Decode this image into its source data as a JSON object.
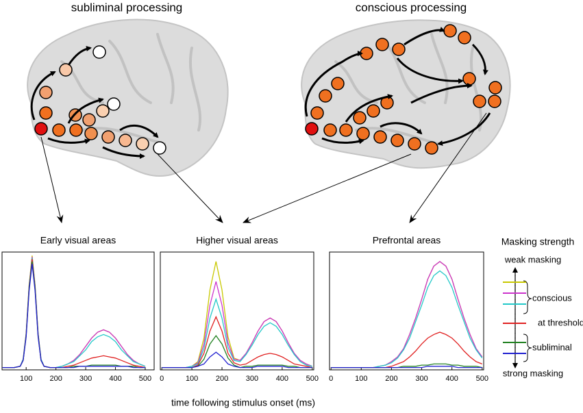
{
  "brains": [
    "subliminal processing",
    "conscious processing"
  ],
  "xlabel": "time following stimulus onset (ms)",
  "legend": {
    "title": "Masking strength",
    "top": "weak masking",
    "bottom": "strong masking",
    "groups": [
      "conscious",
      "at threshold",
      "subliminal"
    ]
  },
  "chart_data": [
    {
      "type": "line",
      "title": "Early visual areas",
      "xlim": [
        19,
        530
      ],
      "ylim": [
        0,
        1
      ],
      "xticks": [
        100,
        200,
        300,
        400,
        500
      ],
      "x": [
        20,
        40,
        60,
        80,
        90,
        100,
        110,
        120,
        130,
        140,
        150,
        160,
        180,
        200,
        220,
        240,
        260,
        280,
        300,
        320,
        340,
        360,
        380,
        400,
        420,
        440,
        460,
        480,
        500
      ],
      "series": [
        {
          "color": "#c8c800",
          "values": [
            0.02,
            0.02,
            0.02,
            0.03,
            0.09,
            0.31,
            0.72,
            0.97,
            0.72,
            0.31,
            0.09,
            0.03,
            0.02,
            0.02,
            0.03,
            0.05,
            0.08,
            0.13,
            0.2,
            0.27,
            0.32,
            0.34,
            0.32,
            0.27,
            0.2,
            0.13,
            0.08,
            0.05,
            0.03
          ]
        },
        {
          "color": "#cc33cc",
          "values": [
            0.02,
            0.02,
            0.02,
            0.03,
            0.09,
            0.31,
            0.71,
            0.96,
            0.71,
            0.31,
            0.09,
            0.03,
            0.02,
            0.02,
            0.03,
            0.05,
            0.08,
            0.13,
            0.2,
            0.27,
            0.32,
            0.34,
            0.32,
            0.27,
            0.2,
            0.13,
            0.08,
            0.05,
            0.03
          ]
        },
        {
          "color": "#22c8c8",
          "values": [
            0.02,
            0.02,
            0.02,
            0.03,
            0.09,
            0.31,
            0.71,
            0.95,
            0.71,
            0.31,
            0.09,
            0.03,
            0.02,
            0.02,
            0.03,
            0.05,
            0.07,
            0.12,
            0.17,
            0.24,
            0.28,
            0.3,
            0.28,
            0.24,
            0.17,
            0.12,
            0.07,
            0.05,
            0.03
          ]
        },
        {
          "color": "#e02020",
          "values": [
            0.02,
            0.02,
            0.02,
            0.03,
            0.08,
            0.3,
            0.7,
            0.94,
            0.7,
            0.3,
            0.08,
            0.03,
            0.02,
            0.02,
            0.02,
            0.03,
            0.04,
            0.06,
            0.08,
            0.1,
            0.11,
            0.12,
            0.11,
            0.1,
            0.08,
            0.06,
            0.04,
            0.03,
            0.02
          ]
        },
        {
          "color": "#208020",
          "values": [
            0.02,
            0.02,
            0.02,
            0.03,
            0.08,
            0.29,
            0.69,
            0.92,
            0.69,
            0.29,
            0.08,
            0.03,
            0.02,
            0.02,
            0.02,
            0.02,
            0.03,
            0.03,
            0.03,
            0.04,
            0.04,
            0.04,
            0.04,
            0.04,
            0.03,
            0.03,
            0.03,
            0.02,
            0.02
          ]
        },
        {
          "color": "#2020d0",
          "values": [
            0.02,
            0.02,
            0.02,
            0.03,
            0.08,
            0.28,
            0.67,
            0.9,
            0.67,
            0.28,
            0.08,
            0.03,
            0.02,
            0.02,
            0.02,
            0.02,
            0.02,
            0.03,
            0.03,
            0.03,
            0.03,
            0.03,
            0.03,
            0.03,
            0.03,
            0.03,
            0.02,
            0.02,
            0.02
          ]
        }
      ]
    },
    {
      "type": "line",
      "title": "Higher visual areas",
      "xlim": [
        -5,
        505
      ],
      "ylim": [
        0,
        1
      ],
      "xticks": [
        0,
        100,
        200,
        300,
        400,
        500
      ],
      "x": [
        0,
        20,
        40,
        60,
        80,
        100,
        120,
        140,
        160,
        180,
        200,
        220,
        240,
        260,
        280,
        300,
        320,
        340,
        360,
        380,
        400,
        420,
        440,
        460,
        480,
        500
      ],
      "series": [
        {
          "color": "#c8c800",
          "values": [
            0.02,
            0.02,
            0.02,
            0.02,
            0.02,
            0.03,
            0.07,
            0.27,
            0.68,
            0.92,
            0.68,
            0.28,
            0.1,
            0.08,
            0.14,
            0.23,
            0.33,
            0.41,
            0.44,
            0.41,
            0.33,
            0.23,
            0.14,
            0.08,
            0.05,
            0.03
          ]
        },
        {
          "color": "#cc33cc",
          "values": [
            0.02,
            0.02,
            0.02,
            0.02,
            0.02,
            0.03,
            0.06,
            0.22,
            0.55,
            0.75,
            0.55,
            0.23,
            0.09,
            0.08,
            0.14,
            0.23,
            0.33,
            0.41,
            0.44,
            0.41,
            0.33,
            0.23,
            0.14,
            0.08,
            0.05,
            0.03
          ]
        },
        {
          "color": "#22c8c8",
          "values": [
            0.02,
            0.02,
            0.02,
            0.02,
            0.02,
            0.03,
            0.05,
            0.18,
            0.44,
            0.6,
            0.44,
            0.19,
            0.08,
            0.07,
            0.13,
            0.21,
            0.3,
            0.37,
            0.4,
            0.37,
            0.3,
            0.21,
            0.13,
            0.07,
            0.04,
            0.03
          ]
        },
        {
          "color": "#e02020",
          "values": [
            0.02,
            0.02,
            0.02,
            0.02,
            0.02,
            0.02,
            0.04,
            0.14,
            0.33,
            0.45,
            0.33,
            0.14,
            0.06,
            0.04,
            0.05,
            0.08,
            0.11,
            0.13,
            0.14,
            0.13,
            0.11,
            0.08,
            0.05,
            0.04,
            0.03,
            0.02
          ]
        },
        {
          "color": "#208020",
          "values": [
            0.02,
            0.02,
            0.02,
            0.02,
            0.02,
            0.02,
            0.03,
            0.09,
            0.22,
            0.29,
            0.22,
            0.1,
            0.04,
            0.02,
            0.03,
            0.03,
            0.04,
            0.04,
            0.04,
            0.04,
            0.04,
            0.03,
            0.03,
            0.02,
            0.02,
            0.02
          ]
        },
        {
          "color": "#2020d0",
          "values": [
            0.02,
            0.02,
            0.02,
            0.02,
            0.02,
            0.02,
            0.03,
            0.05,
            0.11,
            0.15,
            0.11,
            0.05,
            0.03,
            0.02,
            0.02,
            0.02,
            0.03,
            0.03,
            0.03,
            0.03,
            0.03,
            0.02,
            0.02,
            0.02,
            0.02,
            0.02
          ]
        }
      ]
    },
    {
      "type": "line",
      "title": "Prefrontal areas",
      "xlim": [
        -5,
        505
      ],
      "ylim": [
        0,
        1
      ],
      "xticks": [
        0,
        100,
        200,
        300,
        400,
        500
      ],
      "x": [
        0,
        20,
        40,
        60,
        80,
        100,
        120,
        140,
        160,
        180,
        200,
        220,
        240,
        260,
        280,
        300,
        320,
        340,
        360,
        380,
        400,
        420,
        440,
        460,
        480,
        500
      ],
      "series": [
        {
          "color": "#c8c800",
          "values": [
            0.02,
            0.02,
            0.02,
            0.02,
            0.02,
            0.02,
            0.02,
            0.02,
            0.03,
            0.04,
            0.07,
            0.11,
            0.18,
            0.3,
            0.44,
            0.6,
            0.77,
            0.88,
            0.92,
            0.88,
            0.77,
            0.6,
            0.44,
            0.3,
            0.18,
            0.11
          ]
        },
        {
          "color": "#cc33cc",
          "values": [
            0.02,
            0.02,
            0.02,
            0.02,
            0.02,
            0.02,
            0.02,
            0.02,
            0.03,
            0.04,
            0.07,
            0.11,
            0.18,
            0.3,
            0.44,
            0.6,
            0.77,
            0.88,
            0.92,
            0.88,
            0.77,
            0.6,
            0.44,
            0.3,
            0.18,
            0.11
          ]
        },
        {
          "color": "#22c8c8",
          "values": [
            0.02,
            0.02,
            0.02,
            0.02,
            0.02,
            0.02,
            0.02,
            0.02,
            0.03,
            0.04,
            0.06,
            0.1,
            0.17,
            0.27,
            0.41,
            0.55,
            0.7,
            0.8,
            0.84,
            0.8,
            0.7,
            0.55,
            0.41,
            0.27,
            0.17,
            0.1
          ]
        },
        {
          "color": "#e02020",
          "values": [
            0.02,
            0.02,
            0.02,
            0.02,
            0.02,
            0.02,
            0.02,
            0.02,
            0.02,
            0.02,
            0.03,
            0.05,
            0.07,
            0.11,
            0.16,
            0.22,
            0.27,
            0.3,
            0.32,
            0.3,
            0.27,
            0.22,
            0.16,
            0.11,
            0.07,
            0.05
          ]
        },
        {
          "color": "#208020",
          "values": [
            0.02,
            0.02,
            0.02,
            0.02,
            0.02,
            0.02,
            0.02,
            0.02,
            0.02,
            0.02,
            0.02,
            0.02,
            0.03,
            0.03,
            0.03,
            0.04,
            0.04,
            0.05,
            0.05,
            0.05,
            0.04,
            0.04,
            0.03,
            0.03,
            0.03,
            0.02
          ]
        },
        {
          "color": "#2020d0",
          "values": [
            0.02,
            0.02,
            0.02,
            0.02,
            0.02,
            0.02,
            0.02,
            0.02,
            0.02,
            0.02,
            0.02,
            0.02,
            0.02,
            0.02,
            0.02,
            0.02,
            0.03,
            0.03,
            0.03,
            0.03,
            0.03,
            0.02,
            0.02,
            0.02,
            0.02,
            0.02
          ]
        }
      ]
    }
  ]
}
